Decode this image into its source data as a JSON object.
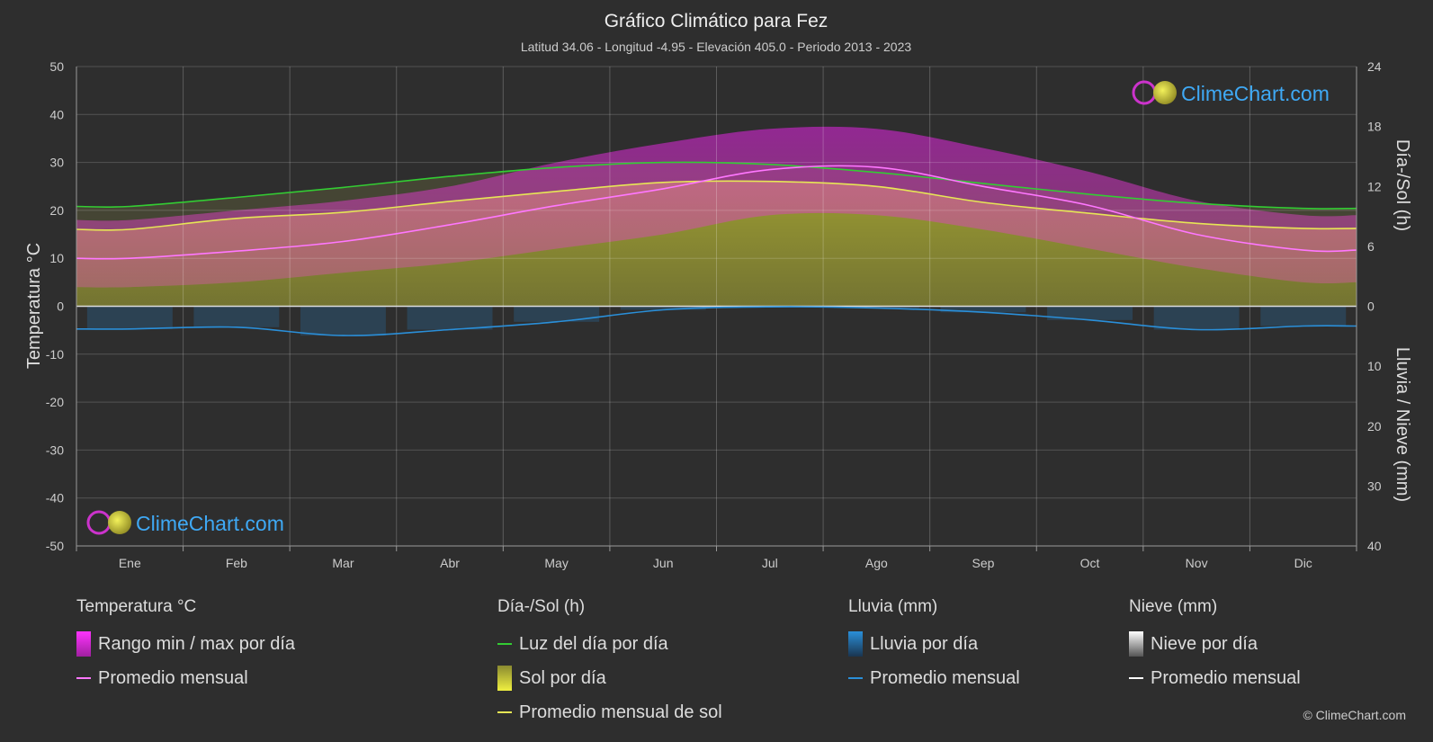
{
  "header": {
    "title": "Gráfico Climático para Fez",
    "subtitle": "Latitud 34.06 - Longitud -4.95 - Elevación 405.0 - Periodo 2013 - 2023"
  },
  "watermark": {
    "text": "ClimeChart.com"
  },
  "copyright": "© ClimeChart.com",
  "legend": {
    "temperature": {
      "title": "Temperatura °C",
      "range_label": "Rango min / max por día",
      "mean_label": "Promedio mensual"
    },
    "sun": {
      "title": "Día-/Sol (h)",
      "daylight_label": "Luz del día por día",
      "sun_label": "Sol por día",
      "sun_mean_label": "Promedio mensual de sol"
    },
    "rain": {
      "title": "Lluvia (mm)",
      "rain_label": "Lluvia por día",
      "mean_label": "Promedio mensual"
    },
    "snow": {
      "title": "Nieve (mm)",
      "snow_label": "Nieve por día",
      "mean_label": "Promedio mensual"
    }
  },
  "colors": {
    "background": "#2e2e2e",
    "temp_range": "#dd22dd",
    "temp_mean": "#ff77ff",
    "daylight": "#33cc33",
    "sun": "#c8c832",
    "sun_mean": "#e6e655",
    "rain": "#2a8fd9",
    "rain_mean": "#2a8fd9",
    "snow": "#ffffff",
    "watermark": "#3fa9f5"
  },
  "chart_data": {
    "type": "area",
    "title": "Gráfico Climático para Fez",
    "categories": [
      "Ene",
      "Feb",
      "Mar",
      "Abr",
      "May",
      "Jun",
      "Jul",
      "Ago",
      "Sep",
      "Oct",
      "Nov",
      "Dic"
    ],
    "y_left": {
      "label": "Temperatura °C",
      "range": [
        -50,
        50
      ],
      "ticks": [
        50,
        40,
        30,
        20,
        10,
        0,
        -10,
        -20,
        -30,
        -40,
        -50
      ]
    },
    "y_right_top": {
      "label": "Día-/Sol (h)",
      "range": [
        0,
        24
      ],
      "ticks": [
        24,
        18,
        12,
        6,
        0
      ]
    },
    "y_right_bottom": {
      "label": "Lluvia / Nieve (mm)",
      "range": [
        0,
        40
      ],
      "ticks": [
        0,
        10,
        20,
        30,
        40
      ]
    },
    "grid": true,
    "series": [
      {
        "name": "Promedio mensual",
        "group": "temperature",
        "axis": "left",
        "values": [
          10.0,
          11.5,
          13.5,
          17.0,
          21.0,
          24.5,
          28.5,
          29.0,
          25.0,
          21.0,
          15.0,
          11.7
        ]
      },
      {
        "name": "Rango min / max por día",
        "group": "temperature",
        "axis": "left",
        "min": [
          4,
          5,
          7,
          9,
          12,
          15,
          19,
          19,
          16,
          12,
          8,
          5
        ],
        "max": [
          18,
          20,
          22,
          25,
          30,
          34,
          37,
          37,
          33,
          28,
          22,
          19
        ]
      },
      {
        "name": "Luz del día por día",
        "group": "sun",
        "axis": "right_top",
        "values": [
          10.0,
          10.9,
          11.9,
          13.0,
          13.9,
          14.4,
          14.2,
          13.4,
          12.3,
          11.2,
          10.3,
          9.8
        ]
      },
      {
        "name": "Promedio mensual de sol",
        "group": "sun",
        "axis": "right_top",
        "values": [
          7.7,
          8.8,
          9.4,
          10.5,
          11.5,
          12.4,
          12.5,
          12.0,
          10.4,
          9.3,
          8.3,
          7.8
        ]
      },
      {
        "name": "Promedio mensual",
        "group": "rain",
        "axis": "right_bottom",
        "values": [
          3.8,
          3.5,
          4.9,
          3.9,
          2.6,
          0.6,
          0.1,
          0.3,
          1.0,
          2.3,
          3.9,
          3.3
        ]
      }
    ]
  }
}
